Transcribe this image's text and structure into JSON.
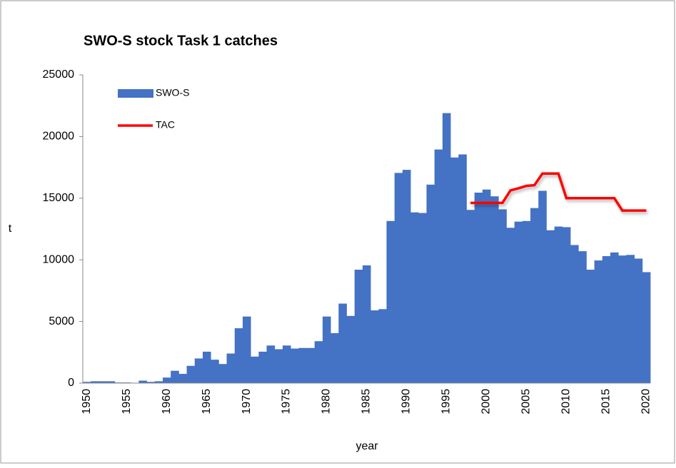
{
  "chart_data": {
    "type": "bar",
    "title": "SWO-S stock Task 1 catches",
    "y_label": "t",
    "x_label": "year",
    "categories": [
      "1950",
      null,
      null,
      null,
      null,
      "1955",
      null,
      null,
      null,
      null,
      "1960",
      null,
      null,
      null,
      null,
      "1965",
      null,
      null,
      null,
      null,
      "1970",
      null,
      null,
      null,
      null,
      "1975",
      null,
      null,
      null,
      null,
      "1980",
      null,
      null,
      null,
      null,
      "1985",
      null,
      null,
      null,
      null,
      "1990",
      null,
      null,
      null,
      null,
      "1995",
      null,
      null,
      null,
      null,
      "2000",
      null,
      null,
      null,
      null,
      "2005",
      null,
      null,
      null,
      null,
      "2010",
      null,
      null,
      null,
      null,
      "2015",
      null,
      null,
      null,
      null,
      "2020"
    ],
    "series": [
      {
        "name": "SWO-S",
        "color": "#4472c4",
        "values": [
          100,
          150,
          150,
          150,
          50,
          50,
          0,
          200,
          100,
          150,
          450,
          1000,
          750,
          1400,
          2000,
          2550,
          1900,
          1550,
          2400,
          4450,
          5400,
          2150,
          2550,
          3050,
          2750,
          3050,
          2800,
          2850,
          2850,
          3400,
          5400,
          4050,
          6450,
          5450,
          9200,
          9550,
          5900,
          6000,
          13150,
          17050,
          17300,
          13850,
          13800,
          16100,
          18950,
          21900,
          18300,
          18550,
          14050,
          15450,
          15700,
          15150,
          14100,
          12600,
          13100,
          13150,
          14200,
          15600,
          12400,
          12700,
          12650,
          11200,
          10700,
          9200,
          9950,
          10300,
          10600,
          10350,
          10400,
          10100,
          9000
        ]
      },
      {
        "name": "TAC",
        "color": "#ff0000",
        "type": "line",
        "values": [
          null,
          null,
          null,
          null,
          null,
          null,
          null,
          null,
          null,
          null,
          null,
          null,
          null,
          null,
          null,
          null,
          null,
          null,
          null,
          null,
          null,
          null,
          null,
          null,
          null,
          null,
          null,
          null,
          null,
          null,
          null,
          null,
          null,
          null,
          null,
          null,
          null,
          null,
          null,
          null,
          null,
          null,
          null,
          null,
          null,
          null,
          null,
          null,
          14620,
          14620,
          14620,
          14620,
          14620,
          15631,
          15800,
          16000,
          16055,
          17000,
          17000,
          17000,
          15000,
          15000,
          15000,
          15000,
          15000,
          15000,
          15000,
          14000,
          14000,
          14000,
          14000
        ]
      }
    ],
    "ylim": [
      0,
      25000
    ],
    "yticks": [
      0,
      5000,
      10000,
      15000,
      20000,
      25000
    ]
  }
}
